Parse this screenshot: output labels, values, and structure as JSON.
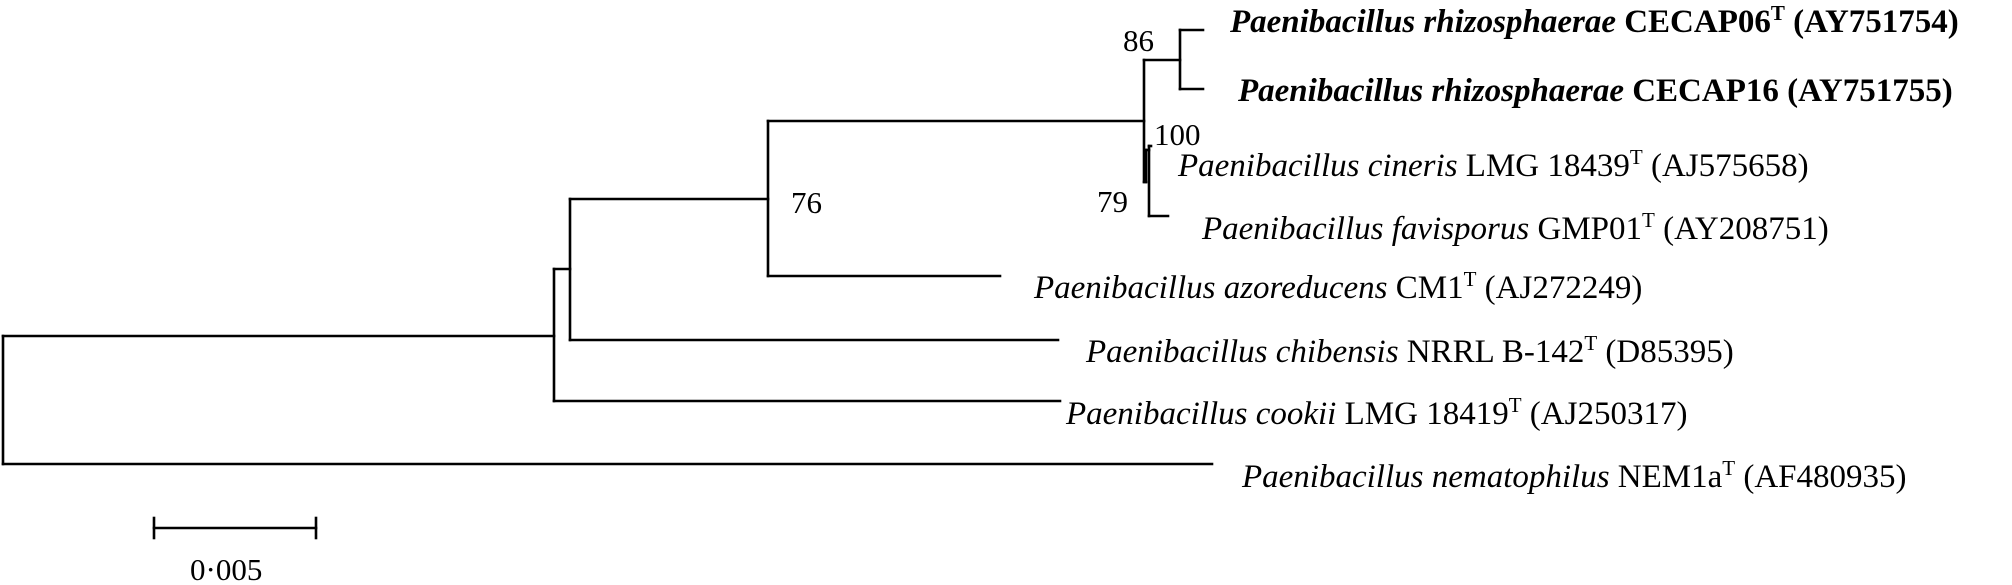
{
  "tree": {
    "leaves": [
      {
        "id": "rhizo06",
        "genus_species": "Paenibacillus rhizosphaerae",
        "strain": "CECAP06",
        "type_strain": true,
        "type_mark": "T",
        "accession": "(AY751754)",
        "bold": true
      },
      {
        "id": "rhizo16",
        "genus_species": "Paenibacillus rhizosphaerae",
        "strain": "CECAP16",
        "type_strain": false,
        "type_mark": "",
        "accession": "(AY751755)",
        "bold": true
      },
      {
        "id": "cineris",
        "genus_species": "Paenibacillus cineris",
        "strain": "LMG 18439",
        "type_strain": true,
        "type_mark": "T",
        "accession": "(AJ575658)",
        "bold": false
      },
      {
        "id": "favisporus",
        "genus_species": "Paenibacillus favisporus",
        "strain": "GMP01",
        "type_strain": true,
        "type_mark": "T",
        "accession": "(AY208751)",
        "bold": false
      },
      {
        "id": "azoreducens",
        "genus_species": "Paenibacillus azoreducens",
        "strain": "CM1",
        "type_strain": true,
        "type_mark": "T",
        "accession": "(AJ272249)",
        "bold": false
      },
      {
        "id": "chibensis",
        "genus_species": "Paenibacillus chibensis",
        "strain": "NRRL B-142",
        "type_strain": true,
        "type_mark": "T",
        "accession": "(D85395)",
        "bold": false
      },
      {
        "id": "cookii",
        "genus_species": "Paenibacillus cookii",
        "strain": "LMG 18419",
        "type_strain": true,
        "type_mark": "T",
        "accession": "(AJ250317)",
        "bold": false
      },
      {
        "id": "nematophilus",
        "genus_species": "Paenibacillus nematophilus",
        "strain": "NEM1a",
        "type_strain": true,
        "type_mark": "T",
        "accession": "(AF480935)",
        "bold": false
      }
    ],
    "bootstrap": [
      {
        "node": "rhizosphaerae-clade",
        "value": "86"
      },
      {
        "node": "cineris-favisporus-clade",
        "value": "100"
      },
      {
        "node": "cineris-favisporus-inner",
        "value": "79"
      },
      {
        "node": "azoreducens-clade",
        "value": "76"
      }
    ]
  },
  "scale_bar": {
    "value": 0.005,
    "label": "0·005"
  }
}
